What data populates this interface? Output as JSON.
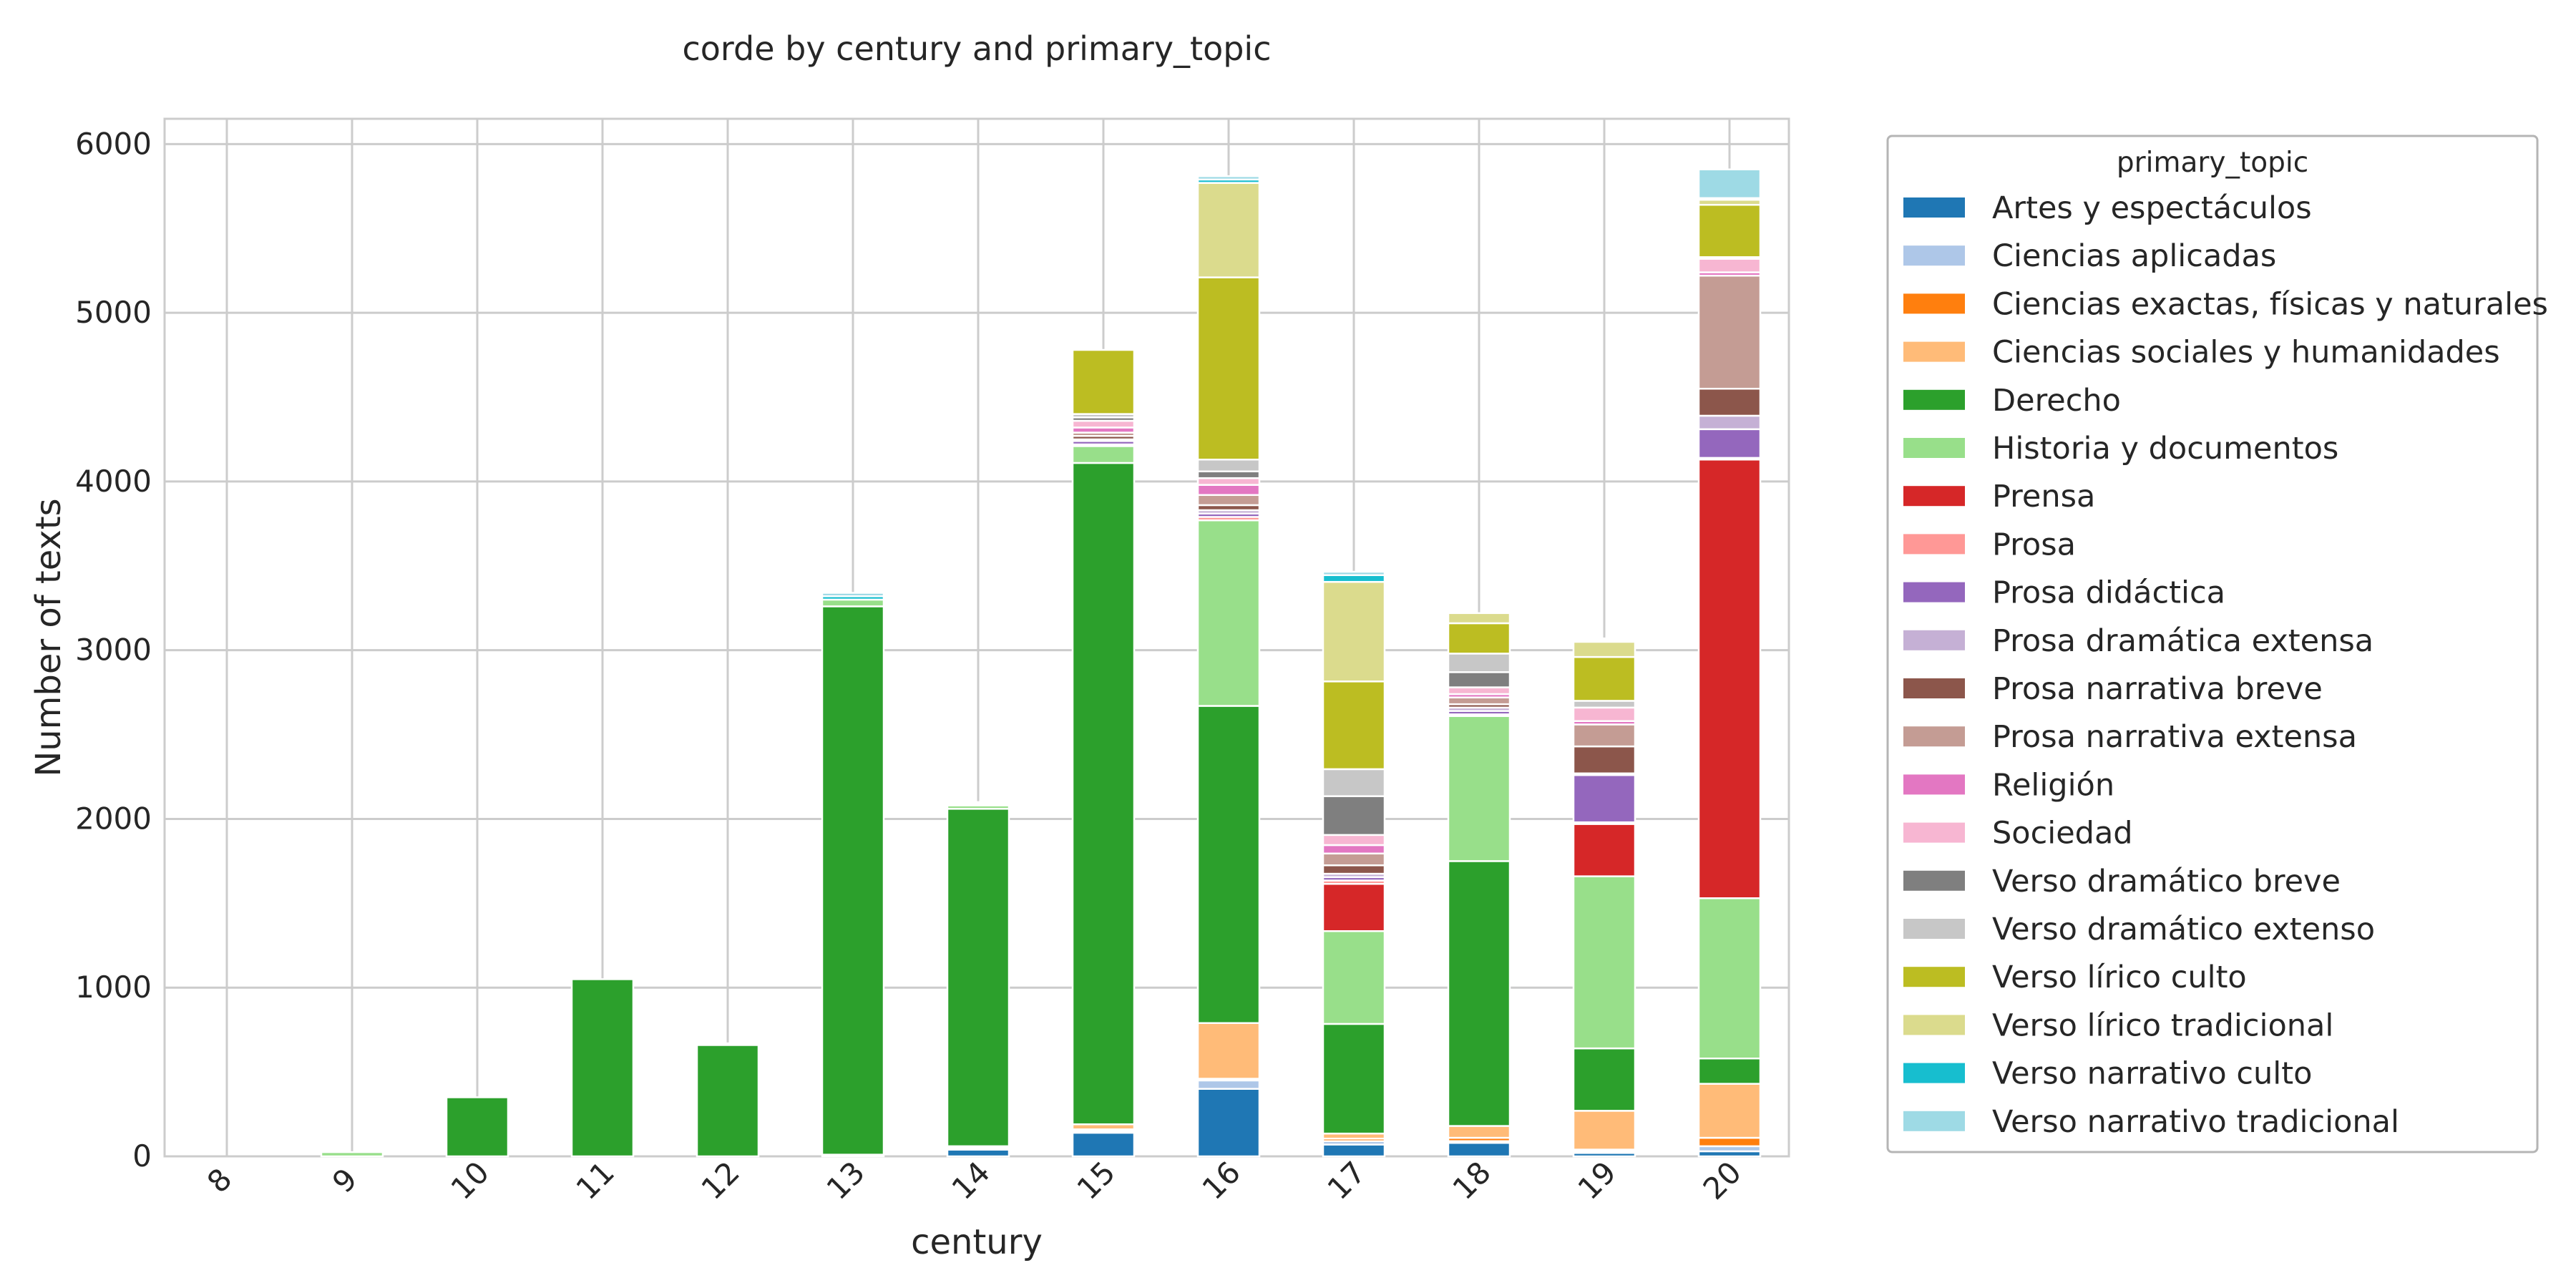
{
  "chart_data": {
    "type": "bar",
    "stacked": true,
    "title": "corde by century and primary_topic",
    "xlabel": "century",
    "ylabel": "Number of texts",
    "ylim": [
      0,
      6150
    ],
    "yticks": [
      0,
      1000,
      2000,
      3000,
      4000,
      5000,
      6000
    ],
    "grid": true,
    "legend_title": "primary_topic",
    "legend_position": "outside-right",
    "categories": [
      "8",
      "9",
      "10",
      "11",
      "12",
      "13",
      "14",
      "15",
      "16",
      "17",
      "18",
      "19",
      "20"
    ],
    "series": [
      {
        "name": "Artes y espectáculos",
        "color": "#1f77b4",
        "values": [
          0,
          0,
          0,
          0,
          0,
          0,
          40,
          140,
          400,
          70,
          80,
          20,
          30
        ]
      },
      {
        "name": "Ciencias aplicadas",
        "color": "#aec7e8",
        "values": [
          0,
          0,
          0,
          0,
          0,
          0,
          10,
          10,
          50,
          20,
          10,
          10,
          30
        ]
      },
      {
        "name": "Ciencias exactas, físicas y naturales",
        "color": "#ff7f0e",
        "values": [
          0,
          0,
          0,
          0,
          0,
          0,
          0,
          10,
          10,
          15,
          20,
          10,
          50
        ]
      },
      {
        "name": "Ciencias sociales y humanidades",
        "color": "#ffbb78",
        "values": [
          0,
          0,
          0,
          0,
          0,
          10,
          10,
          30,
          330,
          30,
          70,
          230,
          320
        ]
      },
      {
        "name": "Derecho",
        "color": "#2ca02c",
        "values": [
          0,
          0,
          350,
          1050,
          660,
          3250,
          2000,
          3920,
          1880,
          650,
          1570,
          370,
          150
        ]
      },
      {
        "name": "Historia y documentos",
        "color": "#98df8a",
        "values": [
          0,
          25,
          0,
          0,
          10,
          40,
          20,
          100,
          1100,
          550,
          860,
          1020,
          950
        ]
      },
      {
        "name": "Prensa",
        "color": "#d62728",
        "values": [
          0,
          0,
          0,
          0,
          0,
          0,
          0,
          0,
          0,
          280,
          0,
          310,
          2600
        ]
      },
      {
        "name": "Prosa",
        "color": "#ff9896",
        "values": [
          0,
          0,
          0,
          0,
          0,
          0,
          0,
          10,
          20,
          20,
          10,
          10,
          10
        ]
      },
      {
        "name": "Prosa didáctica",
        "color": "#9467bd",
        "values": [
          0,
          0,
          0,
          0,
          0,
          0,
          0,
          20,
          20,
          20,
          20,
          280,
          170
        ]
      },
      {
        "name": "Prosa dramática extensa",
        "color": "#c5b0d5",
        "values": [
          0,
          0,
          0,
          0,
          0,
          0,
          0,
          10,
          20,
          20,
          20,
          10,
          80
        ]
      },
      {
        "name": "Prosa narrativa breve",
        "color": "#8c564b",
        "values": [
          0,
          0,
          0,
          0,
          0,
          0,
          0,
          20,
          30,
          50,
          20,
          160,
          160
        ]
      },
      {
        "name": "Prosa narrativa extensa",
        "color": "#c49c94",
        "values": [
          0,
          0,
          0,
          0,
          0,
          0,
          0,
          20,
          60,
          70,
          40,
          130,
          670
        ]
      },
      {
        "name": "Religión",
        "color": "#e377c2",
        "values": [
          0,
          0,
          0,
          0,
          0,
          0,
          0,
          30,
          60,
          50,
          20,
          20,
          20
        ]
      },
      {
        "name": "Sociedad",
        "color": "#f7b6d2",
        "values": [
          0,
          0,
          0,
          0,
          0,
          0,
          0,
          40,
          40,
          60,
          40,
          80,
          80
        ]
      },
      {
        "name": "Verso dramático breve",
        "color": "#7f7f7f",
        "values": [
          0,
          0,
          0,
          0,
          0,
          0,
          0,
          20,
          40,
          230,
          90,
          0,
          0
        ]
      },
      {
        "name": "Verso dramático extenso",
        "color": "#c7c7c7",
        "values": [
          0,
          0,
          0,
          0,
          0,
          0,
          0,
          20,
          70,
          160,
          110,
          40,
          10
        ]
      },
      {
        "name": "Verso lírico culto",
        "color": "#bcbd22",
        "values": [
          0,
          0,
          0,
          0,
          0,
          0,
          0,
          380,
          1080,
          520,
          180,
          260,
          310
        ]
      },
      {
        "name": "Verso lírico tradicional",
        "color": "#dbdb8d",
        "values": [
          0,
          0,
          0,
          0,
          0,
          0,
          0,
          0,
          560,
          590,
          60,
          90,
          30
        ]
      },
      {
        "name": "Verso narrativo culto",
        "color": "#17becf",
        "values": [
          0,
          0,
          0,
          0,
          0,
          20,
          10,
          0,
          20,
          40,
          0,
          10,
          10
        ]
      },
      {
        "name": "Verso narrativo tradicional",
        "color": "#9edae5",
        "values": [
          0,
          0,
          0,
          0,
          0,
          20,
          10,
          0,
          20,
          20,
          0,
          10,
          170
        ]
      }
    ]
  }
}
